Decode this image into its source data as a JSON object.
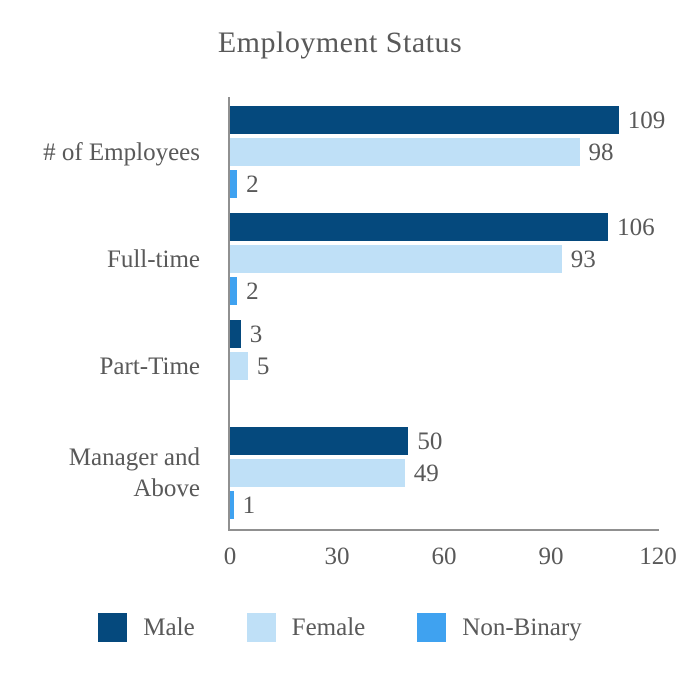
{
  "title": "Employment Status",
  "chart_data": {
    "type": "bar",
    "orientation": "horizontal",
    "title": "Employment Status",
    "categories": [
      "# of Employees",
      "Full-time",
      "Part-Time",
      "Manager and Above"
    ],
    "series": [
      {
        "name": "Male",
        "color": "#05497d",
        "values": [
          109,
          106,
          3,
          50
        ]
      },
      {
        "name": "Female",
        "color": "#bfe0f7",
        "values": [
          98,
          93,
          5,
          49
        ]
      },
      {
        "name": "Non-Binary",
        "color": "#3fa2f0",
        "values": [
          2,
          2,
          0,
          1
        ]
      }
    ],
    "xlim": [
      0,
      120
    ],
    "x_ticks": [
      "0",
      "30",
      "60",
      "90",
      "120"
    ],
    "grid": false,
    "legend_position": "bottom",
    "value_labels_shown": true,
    "zero_values_unlabeled": true
  },
  "colors": {
    "text": "#595959",
    "axis": "#909090",
    "background": "#ffffff"
  },
  "legend": {
    "items": [
      {
        "label": "Male",
        "color": "#05497d"
      },
      {
        "label": "Female",
        "color": "#bfe0f7"
      },
      {
        "label": "Non-Binary",
        "color": "#3fa2f0"
      }
    ]
  }
}
